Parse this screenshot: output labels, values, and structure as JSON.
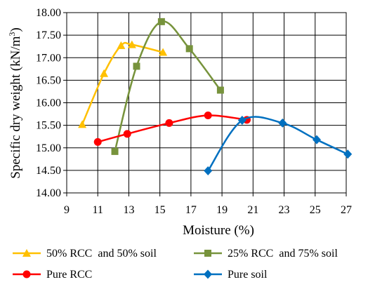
{
  "chart_data": {
    "type": "scatter",
    "xlabel": "Moisture (%)",
    "ylabel": "Specific dry weight (kN/m",
    "ylabel_sup": "3",
    "ylabel_close": ")",
    "xlim": [
      9,
      27
    ],
    "ylim": [
      14.0,
      18.0
    ],
    "xticks": [
      "9",
      "11",
      "13",
      "15",
      "17",
      "19",
      "21",
      "23",
      "25",
      "27"
    ],
    "yticks": [
      "14.00",
      "14.50",
      "15.00",
      "15.50",
      "16.00",
      "16.50",
      "17.00",
      "17.50",
      "18.00"
    ],
    "grid": true,
    "legend_position": "bottom",
    "series": [
      {
        "name": "50% RCC  and 50% soil",
        "color": "#FFC000",
        "marker": "triangle",
        "x": [
          10.0,
          11.4,
          12.5,
          13.2,
          15.2
        ],
        "y": [
          15.52,
          16.65,
          17.27,
          17.29,
          17.12
        ]
      },
      {
        "name": "25% RCC  and 75% soil",
        "color": "#77933C",
        "marker": "square",
        "x": [
          12.1,
          13.5,
          15.1,
          16.9,
          18.9
        ],
        "y": [
          14.92,
          16.81,
          17.8,
          17.2,
          16.28
        ]
      },
      {
        "name": "Pure RCC",
        "color": "#FF0000",
        "marker": "circle",
        "x": [
          11.0,
          12.9,
          15.6,
          18.1,
          20.6
        ],
        "y": [
          15.13,
          15.31,
          15.55,
          15.72,
          15.62
        ]
      },
      {
        "name": "Pure soil",
        "color": "#0070C0",
        "marker": "diamond",
        "x": [
          18.1,
          20.3,
          22.9,
          25.1,
          27.1
        ],
        "y": [
          14.49,
          15.61,
          15.55,
          15.18,
          14.86
        ]
      }
    ]
  }
}
